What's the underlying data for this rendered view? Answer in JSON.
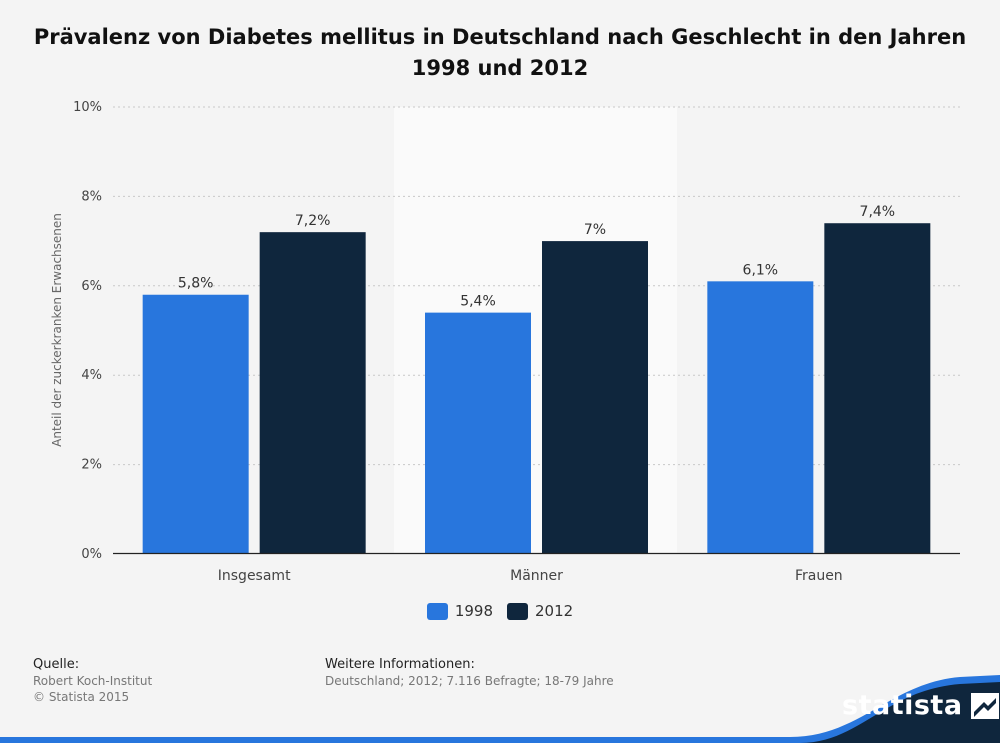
{
  "chart_data": {
    "type": "bar",
    "title": "Prävalenz von Diabetes mellitus in Deutschland nach Geschlecht in den Jahren 1998 und 2012",
    "ylabel": "Anteil der zuckerkranken Erwachsenen",
    "xlabel": "",
    "ylim": [
      0,
      10
    ],
    "yticks": [
      "0%",
      "2%",
      "4%",
      "6%",
      "8%",
      "10%"
    ],
    "grid": true,
    "legend_position": "bottom-center",
    "categories": [
      "Insgesamt",
      "Männer",
      "Frauen"
    ],
    "series": [
      {
        "name": "1998",
        "values": [
          5.8,
          5.4,
          6.1
        ],
        "labels": [
          "5,8%",
          "5,4%",
          "6,1%"
        ],
        "color": "#2876dd"
      },
      {
        "name": "2012",
        "values": [
          7.2,
          7.0,
          7.4
        ],
        "labels": [
          "7,2%",
          "7%",
          "7,4%"
        ],
        "color": "#0f263d"
      }
    ]
  },
  "footer": {
    "source_heading": "Quelle:",
    "source_line1": "Robert Koch-Institut",
    "source_line2": "© Statista 2015",
    "info_heading": "Weitere Informationen:",
    "info_text": "Deutschland; 2012; 7.116 Befragte; 18-79 Jahre"
  },
  "logo": {
    "text": "statista",
    "icon": "statista-logo-icon",
    "color": "#0f263d",
    "accent": "#2876dd"
  }
}
